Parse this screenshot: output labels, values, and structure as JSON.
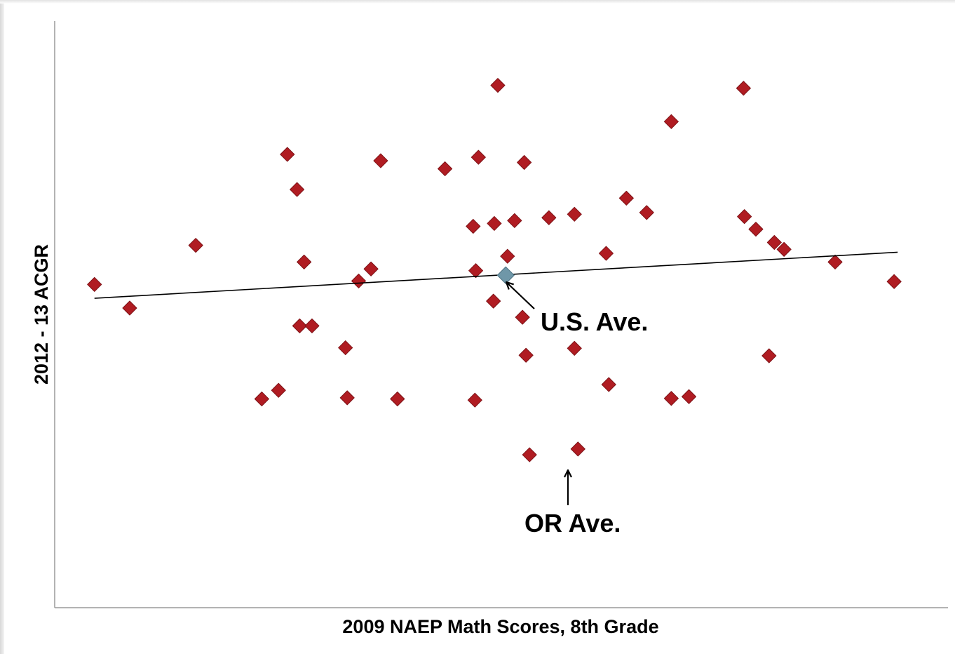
{
  "chart_data": {
    "type": "scatter",
    "title": "",
    "xlabel": "2009 NAEP Math Scores, 8th Grade",
    "ylabel": "2012 - 13 ACGR",
    "xlim": [
      0,
      100
    ],
    "ylim": [
      0,
      100
    ],
    "grid": false,
    "legend": "none",
    "colors": {
      "points": "#b01c22",
      "us_average": "#6f97a8",
      "trendline": "#000000"
    },
    "series": [
      {
        "points": [
          {
            "x": 3.8,
            "y": 55.2
          },
          {
            "x": 7.8,
            "y": 51.1
          },
          {
            "x": 15.3,
            "y": 62.0
          },
          {
            "x": 22.8,
            "y": 35.3
          },
          {
            "x": 24.7,
            "y": 36.8
          },
          {
            "x": 25.7,
            "y": 77.8
          },
          {
            "x": 26.8,
            "y": 71.7
          },
          {
            "x": 27.1,
            "y": 48.0
          },
          {
            "x": 27.6,
            "y": 59.1
          },
          {
            "x": 28.5,
            "y": 48.0
          },
          {
            "x": 32.3,
            "y": 44.2
          },
          {
            "x": 32.5,
            "y": 35.5
          },
          {
            "x": 33.8,
            "y": 55.8
          },
          {
            "x": 35.2,
            "y": 57.9
          },
          {
            "x": 36.3,
            "y": 76.7
          },
          {
            "x": 38.2,
            "y": 35.3
          },
          {
            "x": 43.6,
            "y": 75.3
          },
          {
            "x": 46.8,
            "y": 65.3
          },
          {
            "x": 47.0,
            "y": 35.1
          },
          {
            "x": 47.1,
            "y": 57.6
          },
          {
            "x": 47.4,
            "y": 77.3
          },
          {
            "x": 49.1,
            "y": 52.3
          },
          {
            "x": 49.2,
            "y": 65.8
          },
          {
            "x": 49.6,
            "y": 89.8
          },
          {
            "x": 50.7,
            "y": 60.1
          },
          {
            "x": 51.5,
            "y": 66.3
          },
          {
            "x": 52.4,
            "y": 49.5
          },
          {
            "x": 52.6,
            "y": 76.4
          },
          {
            "x": 52.8,
            "y": 42.9
          },
          {
            "x": 53.2,
            "y": 25.6
          },
          {
            "x": 55.4,
            "y": 66.8
          },
          {
            "x": 58.3,
            "y": 44.1
          },
          {
            "x": 58.3,
            "y": 67.4
          },
          {
            "x": 58.7,
            "y": 26.6
          },
          {
            "x": 61.9,
            "y": 60.6
          },
          {
            "x": 62.2,
            "y": 37.8
          },
          {
            "x": 64.2,
            "y": 70.2
          },
          {
            "x": 66.5,
            "y": 67.7
          },
          {
            "x": 69.3,
            "y": 35.4
          },
          {
            "x": 69.3,
            "y": 83.5
          },
          {
            "x": 71.3,
            "y": 35.7
          },
          {
            "x": 77.5,
            "y": 89.3
          },
          {
            "x": 77.6,
            "y": 67.0
          },
          {
            "x": 78.9,
            "y": 64.8
          },
          {
            "x": 80.4,
            "y": 42.8
          },
          {
            "x": 81.0,
            "y": 62.5
          },
          {
            "x": 82.1,
            "y": 61.3
          },
          {
            "x": 87.9,
            "y": 59.1
          },
          {
            "x": 94.6,
            "y": 55.7
          }
        ]
      },
      {
        "points": [
          {
            "x": 50.5,
            "y": 56.8
          }
        ]
      }
    ],
    "trendline": {
      "x": [
        3.8,
        95.0
      ],
      "y": [
        52.8,
        60.8
      ]
    },
    "annotations": [
      {
        "text": "U.S. Ave.",
        "x": 50.5,
        "y": 56.8
      },
      {
        "text": "OR Ave.",
        "x": 58.7,
        "y": 26.6
      }
    ]
  }
}
